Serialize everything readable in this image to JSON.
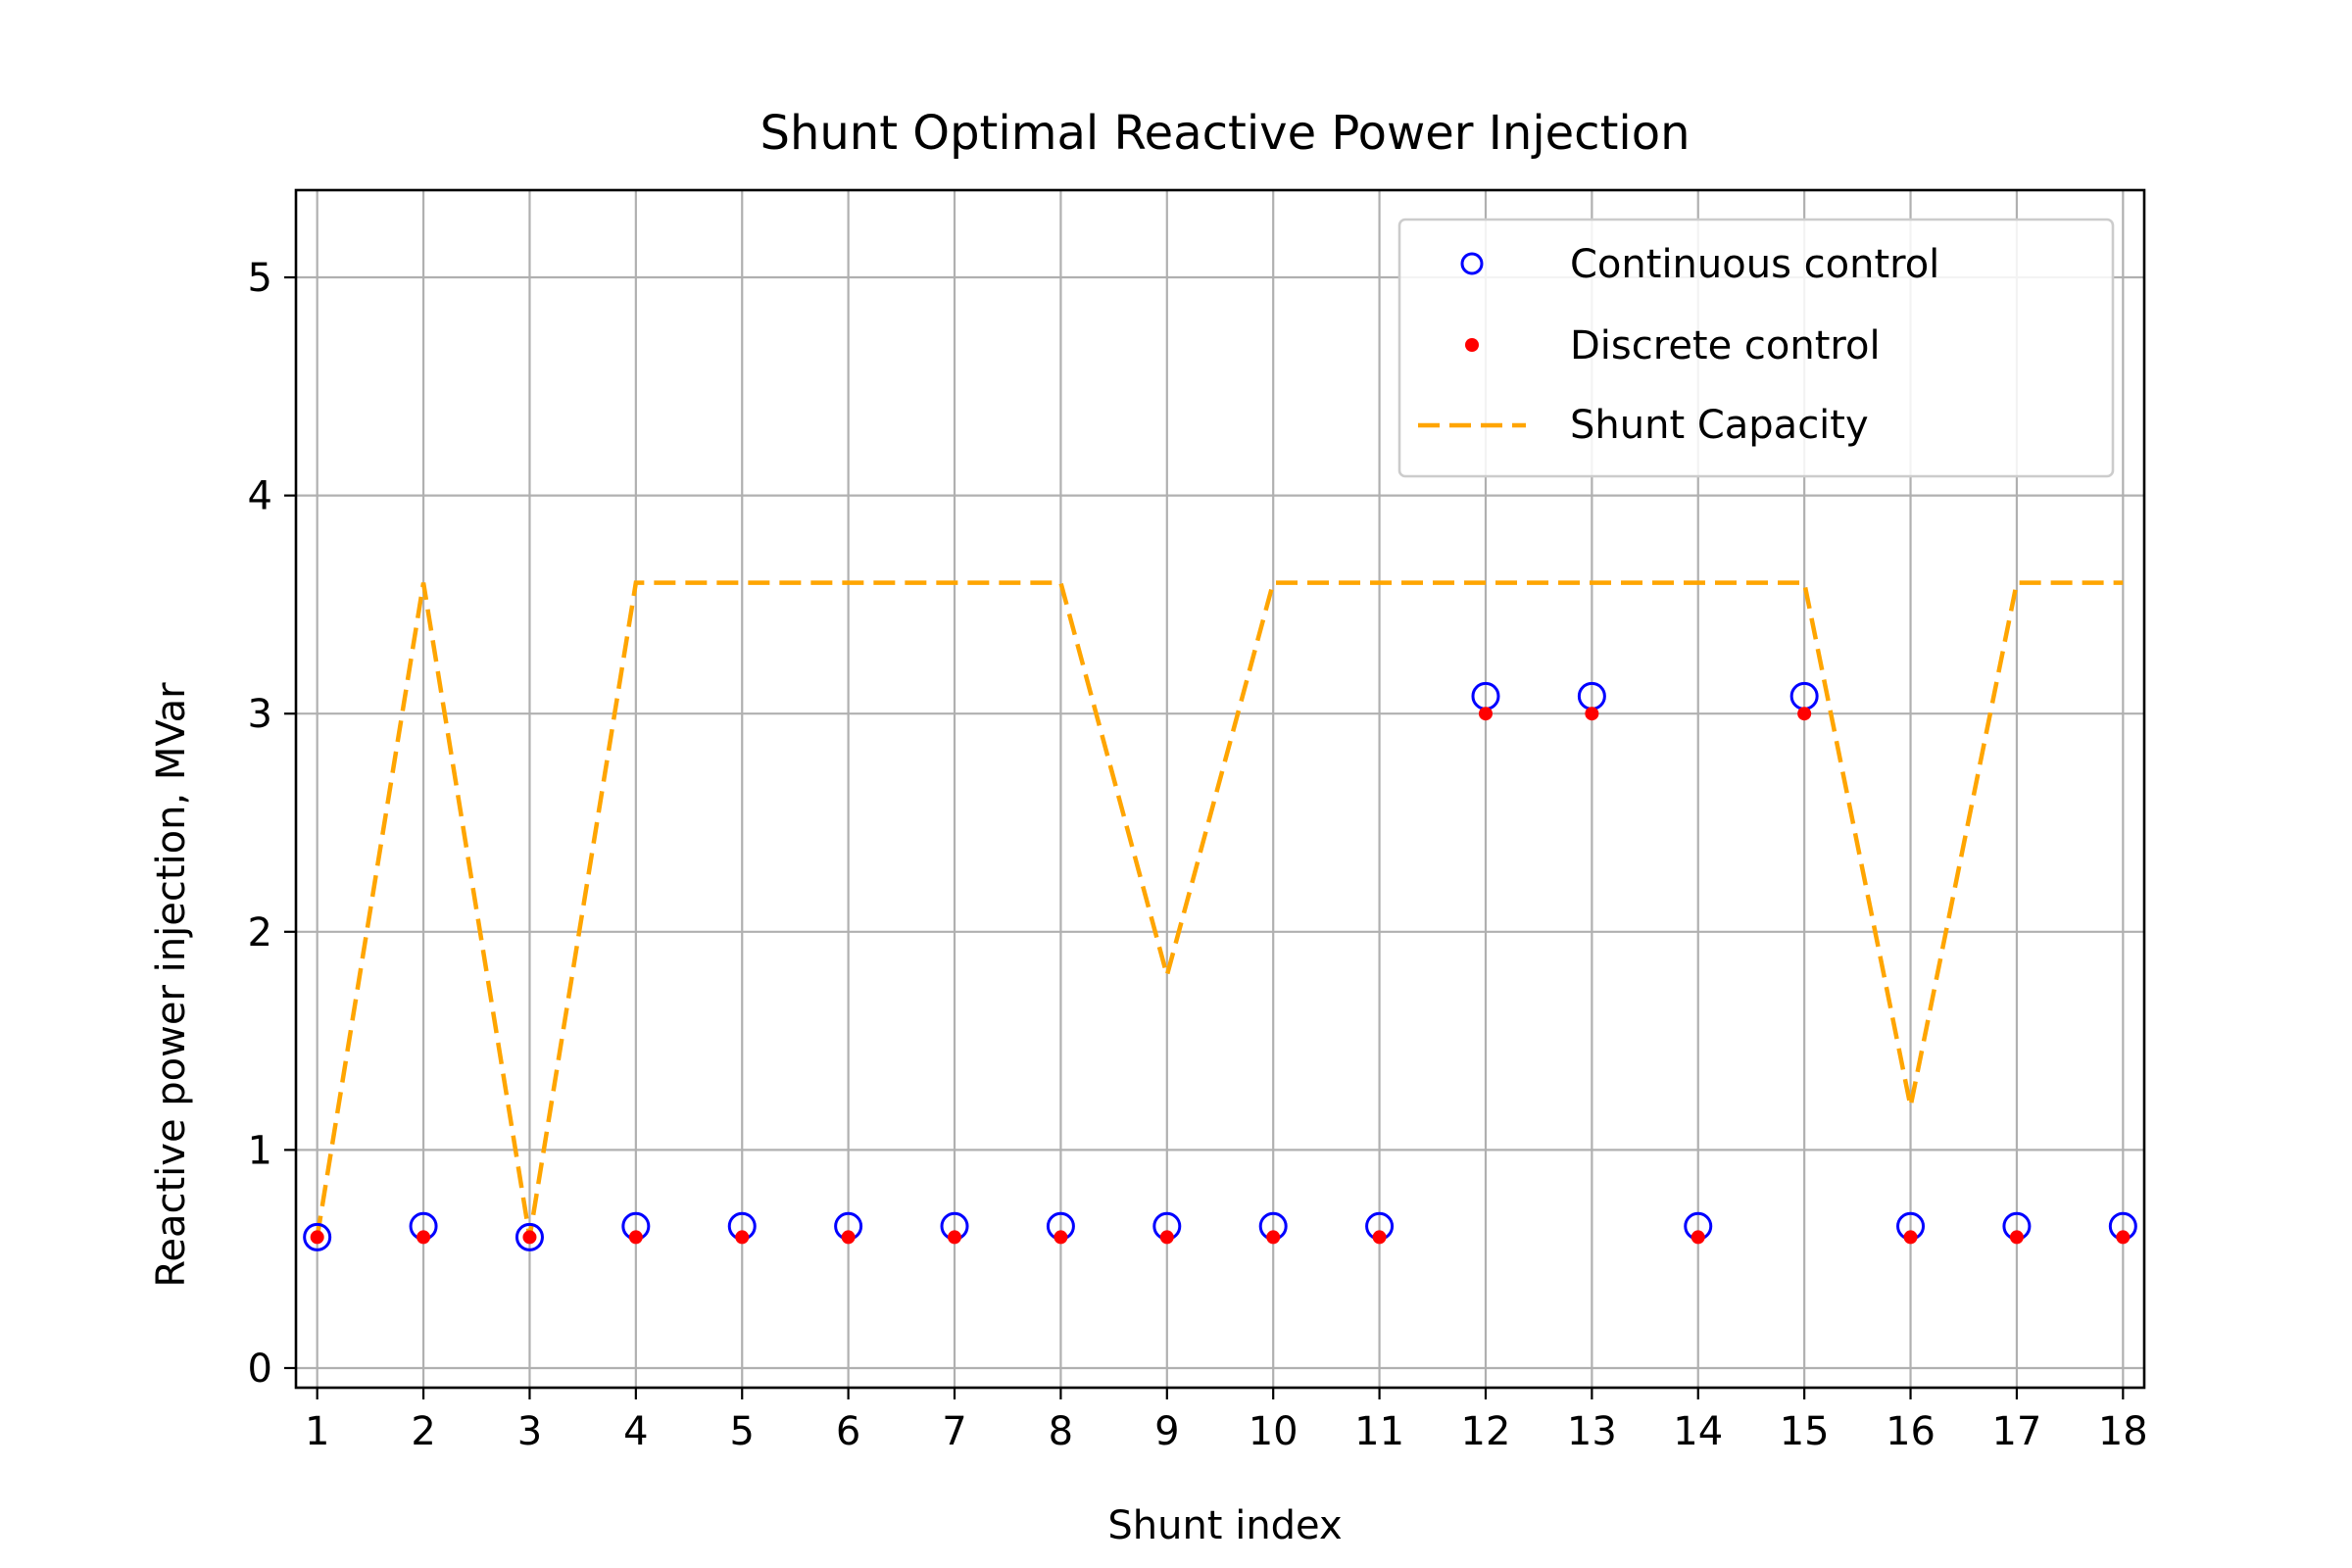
{
  "chart_data": {
    "type": "scatter",
    "title": "Shunt Optimal Reactive Power Injection",
    "xlabel": "Shunt index",
    "ylabel": "Reactive power injection, MVar",
    "xlim": [
      0.8,
      18.2
    ],
    "ylim": [
      -0.09,
      5.4
    ],
    "x_ticks": [
      1,
      2,
      3,
      4,
      5,
      6,
      7,
      8,
      9,
      10,
      11,
      12,
      13,
      14,
      15,
      16,
      17,
      18
    ],
    "y_ticks": [
      0,
      1,
      2,
      3,
      4,
      5
    ],
    "grid": true,
    "legend_position": "top-right",
    "series": [
      {
        "name": "Continuous control",
        "marker": "open-circle",
        "color": "#0000ff",
        "points": [
          [
            1,
            0.6
          ],
          [
            2,
            0.65
          ],
          [
            3,
            0.6
          ],
          [
            4,
            0.65
          ],
          [
            5,
            0.65
          ],
          [
            6,
            0.65
          ],
          [
            7,
            0.65
          ],
          [
            8,
            0.65
          ],
          [
            9,
            0.65
          ],
          [
            10,
            0.65
          ],
          [
            11,
            0.65
          ],
          [
            12,
            3.08
          ],
          [
            13,
            3.08
          ],
          [
            14,
            0.65
          ],
          [
            15,
            3.08
          ],
          [
            16,
            0.65
          ],
          [
            17,
            0.65
          ],
          [
            18,
            0.65
          ]
        ]
      },
      {
        "name": "Discrete control",
        "marker": "dot",
        "color": "#ff0000",
        "points": [
          [
            1,
            0.6
          ],
          [
            2,
            0.6
          ],
          [
            3,
            0.6
          ],
          [
            4,
            0.6
          ],
          [
            5,
            0.6
          ],
          [
            6,
            0.6
          ],
          [
            7,
            0.6
          ],
          [
            8,
            0.6
          ],
          [
            9,
            0.6
          ],
          [
            10,
            0.6
          ],
          [
            11,
            0.6
          ],
          [
            12,
            3.0
          ],
          [
            13,
            3.0
          ],
          [
            14,
            0.6
          ],
          [
            15,
            3.0
          ],
          [
            16,
            0.6
          ],
          [
            17,
            0.6
          ],
          [
            18,
            0.6
          ]
        ]
      },
      {
        "name": "Shunt Capacity",
        "marker": "dashed-line",
        "color": "#ffa500",
        "points": [
          [
            1,
            0.6
          ],
          [
            2,
            3.6
          ],
          [
            3,
            0.6
          ],
          [
            4,
            3.6
          ],
          [
            5,
            3.6
          ],
          [
            6,
            3.6
          ],
          [
            7,
            3.6
          ],
          [
            8,
            3.6
          ],
          [
            9,
            1.8
          ],
          [
            10,
            3.6
          ],
          [
            11,
            3.6
          ],
          [
            12,
            3.6
          ],
          [
            13,
            3.6
          ],
          [
            14,
            3.6
          ],
          [
            15,
            3.6
          ],
          [
            16,
            1.2
          ],
          [
            17,
            3.6
          ],
          [
            18,
            3.6
          ]
        ]
      }
    ]
  }
}
